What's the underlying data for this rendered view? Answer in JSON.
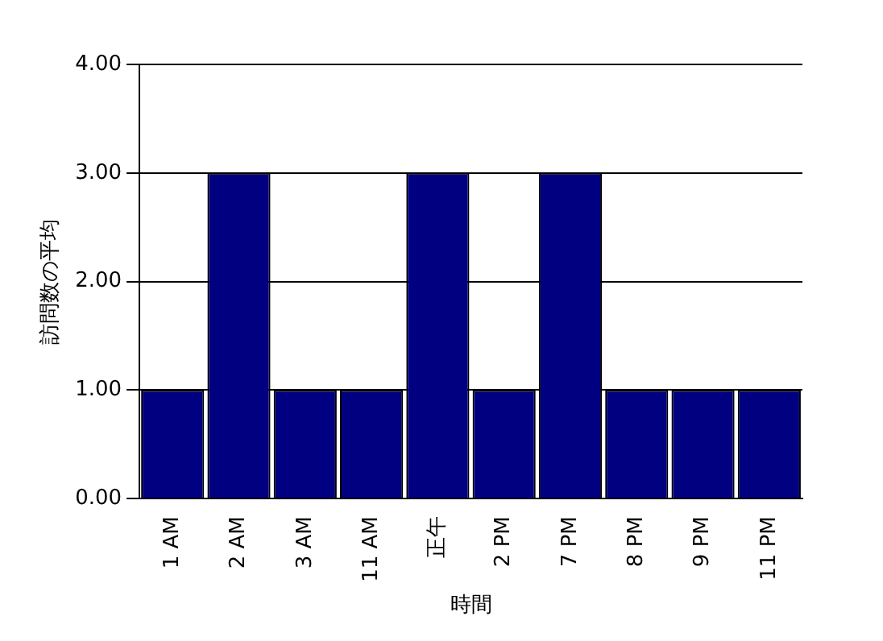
{
  "chart_data": {
    "type": "bar",
    "xlabel": "時間",
    "ylabel": "訪問数の平均",
    "categories": [
      "1 AM",
      "2 AM",
      "3 AM",
      "11 AM",
      "正午",
      "2 PM",
      "7 PM",
      "8 PM",
      "9 PM",
      "11 PM"
    ],
    "values": [
      1,
      3,
      1,
      1,
      3,
      1,
      3,
      1,
      1,
      1
    ],
    "color": "#000080",
    "ylim": [
      0,
      4
    ],
    "yticks": [
      {
        "value": 0,
        "label": "0.00"
      },
      {
        "value": 1,
        "label": "1.00"
      },
      {
        "value": 2,
        "label": "2.00"
      },
      {
        "value": 3,
        "label": "3.00"
      },
      {
        "value": 4,
        "label": "4.00"
      }
    ],
    "grid": "y"
  }
}
